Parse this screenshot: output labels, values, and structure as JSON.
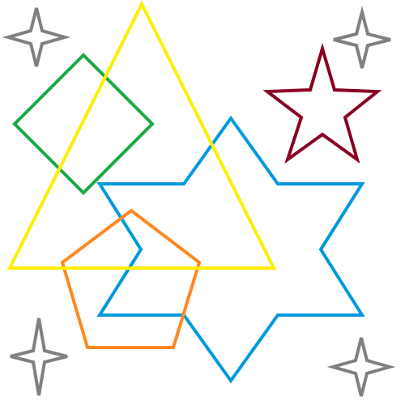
{
  "colors": {
    "background": "#ffffff",
    "triangle": "#ffee00",
    "diamond": "#1aaa44",
    "hexagram": "#0099dd",
    "pentagon": "#ff8822",
    "star": "#880022",
    "sparkles": "#808080"
  },
  "shapes": [
    "yellow-triangle",
    "green-diamond",
    "blue-hexagram",
    "orange-pentagon",
    "dark-red-star",
    "gray-sparkle-top-left",
    "gray-sparkle-top-right",
    "gray-sparkle-bottom-left",
    "gray-sparkle-bottom-right"
  ]
}
